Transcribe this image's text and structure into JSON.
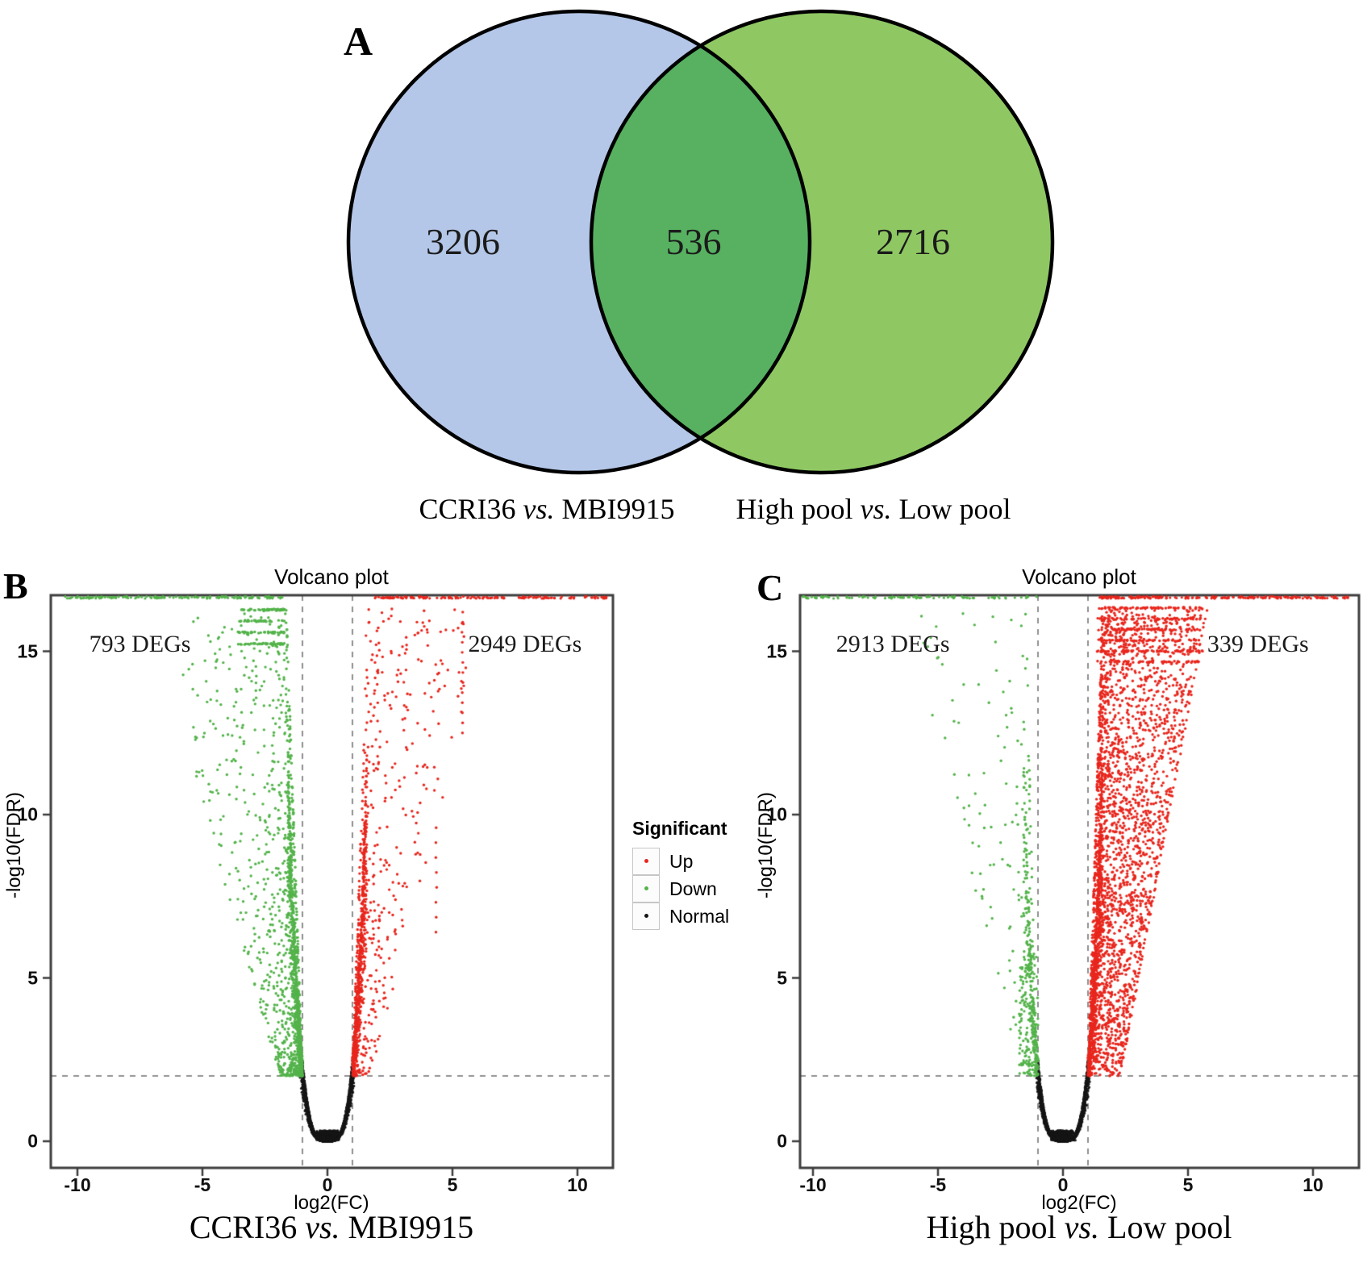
{
  "panelA": {
    "label": "A",
    "sets": [
      {
        "name": "CCRI36 vs. MBI9915",
        "color": "#b4c7e8"
      },
      {
        "name": "High pool vs. Low pool",
        "color": "#8fc863"
      }
    ],
    "overlapColor": "#57b161",
    "captions": [
      {
        "pre": "CCRI36 ",
        "vs": "vs.",
        "post": " MBI9915"
      },
      {
        "pre": "High pool ",
        "vs": "vs.",
        "post": " Low pool"
      }
    ]
  },
  "legend": {
    "title": "Significant",
    "items": [
      {
        "label": "Up",
        "color": "#e8261d"
      },
      {
        "label": "Down",
        "color": "#53b34a"
      },
      {
        "label": "Normal",
        "color": "#151515"
      }
    ]
  },
  "chart_data": [
    {
      "type": "venn",
      "title": "",
      "sets": [
        "CCRI36 vs. MBI9915",
        "High pool vs. Low pool"
      ],
      "values": {
        "left_only": 3206,
        "intersection": 536,
        "right_only": 2716
      }
    },
    {
      "type": "scatter",
      "subtype": "volcano",
      "panel_label": "B",
      "title": "Volcano plot",
      "xlabel": "log2(FC)",
      "ylabel": "-log10(FDR)",
      "xlim": [
        -11.1,
        11.4
      ],
      "ylim": [
        -0.8,
        16.7
      ],
      "xticks": [
        -10,
        -5,
        0,
        5,
        10
      ],
      "yticks": [
        0,
        5,
        10,
        15
      ],
      "fc_thresholds": [
        -1,
        1
      ],
      "fdr_threshold": 2,
      "grid": false,
      "legend_position": "right-outside",
      "deg_left": {
        "text": "793 DEGs",
        "x": -7.5,
        "y": 15.2
      },
      "deg_right": {
        "text": "2949 DEGs",
        "x": 7.9,
        "y": 15.2
      },
      "caption": {
        "pre": "CCRI36 ",
        "vs": "vs.",
        "post": " MBI9915"
      },
      "series": [
        {
          "name": "Up",
          "role": "up"
        },
        {
          "name": "Down",
          "role": "down"
        },
        {
          "name": "Normal",
          "role": "normal"
        }
      ],
      "cloud": {
        "seed": 101,
        "nCore": 4300,
        "nFloor": 700,
        "downCoreKeep": 1.0,
        "upCoreKeep": 0.9,
        "down": {
          "n": 980,
          "yPow": 1.75,
          "xPow": 2.2,
          "spreadA": 0.9,
          "spreadB": 0.33,
          "outerMax": 5.8
        },
        "up": {
          "n": 460,
          "yPow": 1.35,
          "xPow": 2.4,
          "spreadA": 0.7,
          "spreadB": 0.3,
          "outerMax": 5.6
        },
        "downTop": {
          "n": 170,
          "rows": 4,
          "x1": 1.7,
          "x2": 3.6
        },
        "upTop": {
          "n": 40,
          "x1": 1.4,
          "x2": 5.5,
          "y1": 12.6,
          "y2": 16.1
        },
        "capDown": {
          "n": 150,
          "x1": 1.8,
          "x2": 10.6
        },
        "capUp": {
          "n": 150,
          "x1": 1.9,
          "x2": 11.2
        },
        "columns": [
          {
            "x": 5.4,
            "y1": 12.5,
            "y2": 16.2,
            "n": 13
          },
          {
            "x": 4.35,
            "y1": 6.4,
            "y2": 9.6,
            "n": 8
          }
        ]
      }
    },
    {
      "type": "scatter",
      "subtype": "volcano",
      "panel_label": "C",
      "title": "Volcano plot",
      "xlabel": "log2(FC)",
      "ylabel": "-log10(FDR)",
      "xlim": [
        -10.5,
        11.8
      ],
      "ylim": [
        -0.8,
        16.7
      ],
      "xticks": [
        -10,
        -5,
        0,
        5,
        10
      ],
      "yticks": [
        0,
        5,
        10,
        15
      ],
      "fc_thresholds": [
        -1,
        1
      ],
      "fdr_threshold": 2,
      "grid": false,
      "legend_position": "left-outside",
      "deg_left": {
        "text": "2913 DEGs",
        "x": -6.8,
        "y": 15.2
      },
      "deg_right": {
        "text": "339 DEGs",
        "x": 7.8,
        "y": 15.2
      },
      "caption": {
        "pre": "High pool ",
        "vs": "vs.",
        "post": " Low pool"
      },
      "series": [
        {
          "name": "Up",
          "role": "up"
        },
        {
          "name": "Down",
          "role": "down"
        },
        {
          "name": "Normal",
          "role": "normal"
        }
      ],
      "cloud": {
        "seed": 707,
        "nCore": 4300,
        "nFloor": 700,
        "downCoreKeep": 0.3,
        "upCoreKeep": 1.0,
        "downSparse": {
          "n": 190,
          "strip": 130
        },
        "wedge": {
          "n": 2500,
          "yPow": 0.95
        },
        "upTopRows": {
          "n": 340,
          "rows": 6,
          "x1": 1.35,
          "x2": 5.6
        },
        "capDown": {
          "n": 100,
          "x1": 1.0,
          "x2": 10.5
        },
        "capUp": {
          "n": 210,
          "x1": 1.4,
          "x2": 11.4
        },
        "edge": {
          "x1": 2.35,
          "y1": 2.3,
          "x2": 5.75,
          "y2": 16.25,
          "n": 55
        }
      }
    }
  ]
}
